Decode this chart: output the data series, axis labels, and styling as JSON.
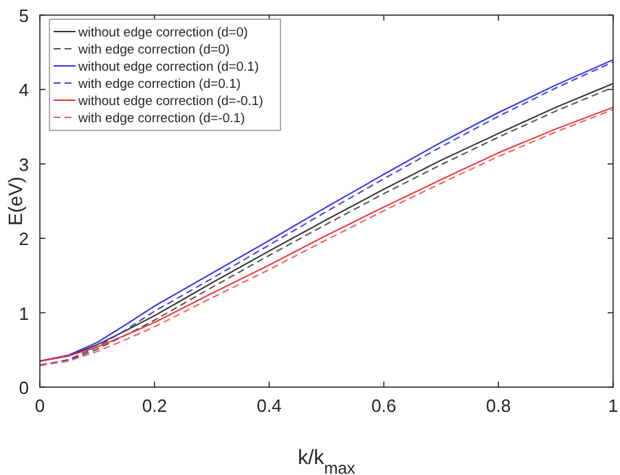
{
  "chart_data": {
    "type": "line",
    "xlabel": "k/k$_{max}$",
    "ylabel": "E(eV)",
    "xlim": [
      0,
      1
    ],
    "ylim": [
      0,
      5
    ],
    "xticks": [
      0,
      0.2,
      0.4,
      0.6,
      0.8,
      1
    ],
    "yticks": [
      0,
      1,
      2,
      3,
      4,
      5
    ],
    "grid": false,
    "legend": "top left",
    "marker": "none",
    "x": [
      0,
      0.05,
      0.1,
      0.15,
      0.2,
      0.3,
      0.4,
      0.5,
      0.6,
      0.7,
      0.8,
      0.9,
      1
    ],
    "series": [
      {
        "name": "without edge correction (d=0)",
        "color": "#333333",
        "line_style": "solid",
        "values": [
          0.35,
          0.42,
          0.57,
          0.76,
          0.96,
          1.4,
          1.83,
          2.25,
          2.66,
          3.05,
          3.41,
          3.76,
          4.08
        ]
      },
      {
        "name": "with edge correction (d=0)",
        "color": "#555555",
        "line_style": "dashed",
        "values": [
          0.3,
          0.36,
          0.51,
          0.7,
          0.9,
          1.34,
          1.77,
          2.19,
          2.6,
          2.99,
          3.36,
          3.71,
          4.03
        ]
      },
      {
        "name": "without edge correction (d=0.1)",
        "color": "#3333ee",
        "line_style": "solid",
        "values": [
          0.35,
          0.43,
          0.6,
          0.84,
          1.09,
          1.53,
          1.97,
          2.42,
          2.86,
          3.29,
          3.69,
          4.06,
          4.4
        ]
      },
      {
        "name": "with edge correction (d=0.1)",
        "color": "#4444dd",
        "line_style": "dashed",
        "values": [
          0.29,
          0.37,
          0.54,
          0.77,
          1.02,
          1.46,
          1.91,
          2.36,
          2.8,
          3.23,
          3.64,
          4.02,
          4.37
        ]
      },
      {
        "name": "without edge correction (d=-0.1)",
        "color": "#ee3333",
        "line_style": "solid",
        "values": [
          0.35,
          0.42,
          0.54,
          0.7,
          0.87,
          1.26,
          1.64,
          2.04,
          2.42,
          2.79,
          3.15,
          3.47,
          3.76
        ]
      },
      {
        "name": "with edge correction (d=-0.1)",
        "color": "#f06060",
        "line_style": "dashed",
        "values": [
          0.29,
          0.35,
          0.48,
          0.64,
          0.81,
          1.2,
          1.58,
          1.98,
          2.37,
          2.74,
          3.1,
          3.43,
          3.73
        ]
      }
    ]
  }
}
